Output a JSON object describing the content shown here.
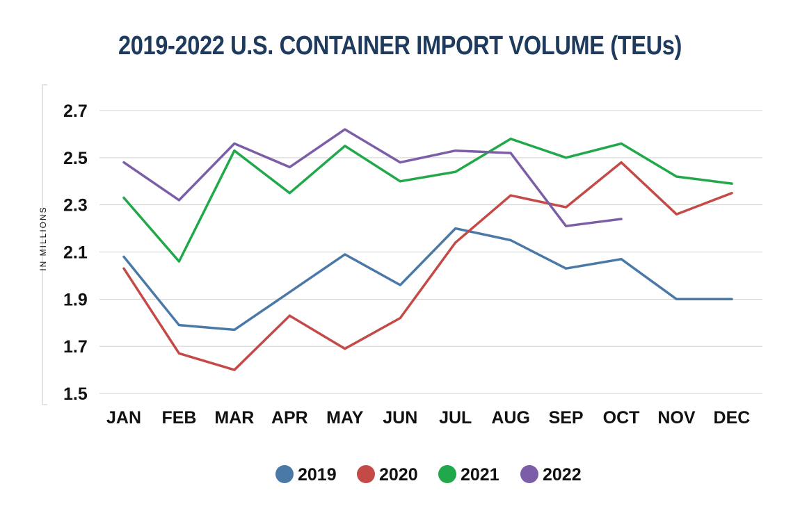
{
  "chart_data": {
    "type": "line",
    "title": "2019-2022 U.S. CONTAINER IMPORT VOLUME (TEUs)",
    "xlabel": "",
    "ylabel": "IN MILLIONS",
    "categories": [
      "JAN",
      "FEB",
      "MAR",
      "APR",
      "MAY",
      "JUN",
      "JUL",
      "AUG",
      "SEP",
      "OCT",
      "NOV",
      "DEC"
    ],
    "y_ticks": [
      "1.5",
      "1.7",
      "1.9",
      "2.1",
      "2.3",
      "2.5",
      "2.7"
    ],
    "ylim": [
      1.5,
      2.7
    ],
    "grid": true,
    "legend_position": "bottom",
    "series": [
      {
        "name": "2019",
        "color": "#4a79a8",
        "values": [
          2.08,
          1.79,
          1.77,
          1.93,
          2.09,
          1.96,
          2.2,
          2.15,
          2.03,
          2.07,
          1.9,
          1.9
        ]
      },
      {
        "name": "2020",
        "color": "#c44a48",
        "values": [
          2.03,
          1.67,
          1.6,
          1.83,
          1.69,
          1.82,
          2.14,
          2.34,
          2.29,
          2.48,
          2.26,
          2.35
        ]
      },
      {
        "name": "2021",
        "color": "#21a84a",
        "values": [
          2.33,
          2.06,
          2.53,
          2.35,
          2.55,
          2.4,
          2.44,
          2.58,
          2.5,
          2.56,
          2.42,
          2.39
        ]
      },
      {
        "name": "2022",
        "color": "#7b5ea7",
        "values": [
          2.48,
          2.32,
          2.56,
          2.46,
          2.62,
          2.48,
          2.53,
          2.52,
          2.21,
          2.24,
          null,
          null
        ]
      }
    ]
  }
}
